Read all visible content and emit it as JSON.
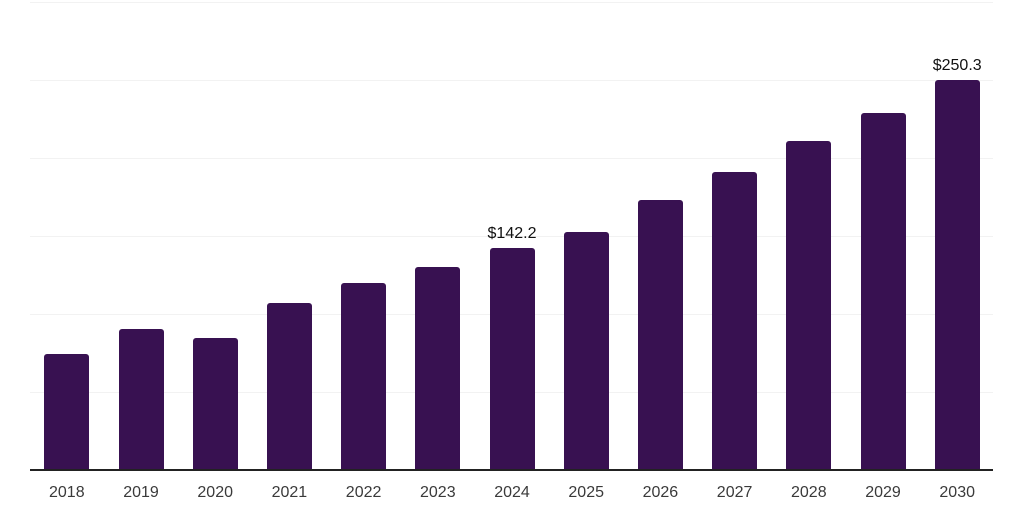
{
  "chart_data": {
    "type": "bar",
    "title": "",
    "xlabel": "",
    "ylabel": "",
    "categories": [
      "2018",
      "2019",
      "2020",
      "2021",
      "2022",
      "2023",
      "2024",
      "2025",
      "2026",
      "2027",
      "2028",
      "2029",
      "2030"
    ],
    "values": [
      74.4,
      90.2,
      84.9,
      106.8,
      119.7,
      130.3,
      142.2,
      152.4,
      173.1,
      191.2,
      211.1,
      229.0,
      250.3
    ],
    "ylim": [
      0,
      300
    ],
    "gridline_step": 50,
    "grid": "horizontal",
    "legend": "none",
    "data_labels": [
      {
        "category": "2024",
        "text": "$142.2"
      },
      {
        "category": "2030",
        "text": "$250.3"
      }
    ],
    "colors": {
      "bar_color": "#381151",
      "gridline_color": "#f2f2f2",
      "axis_line_color": "#222222",
      "tick_label_color": "#3a3a3a",
      "value_label_color": "#111111",
      "background": "#ffffff"
    }
  }
}
